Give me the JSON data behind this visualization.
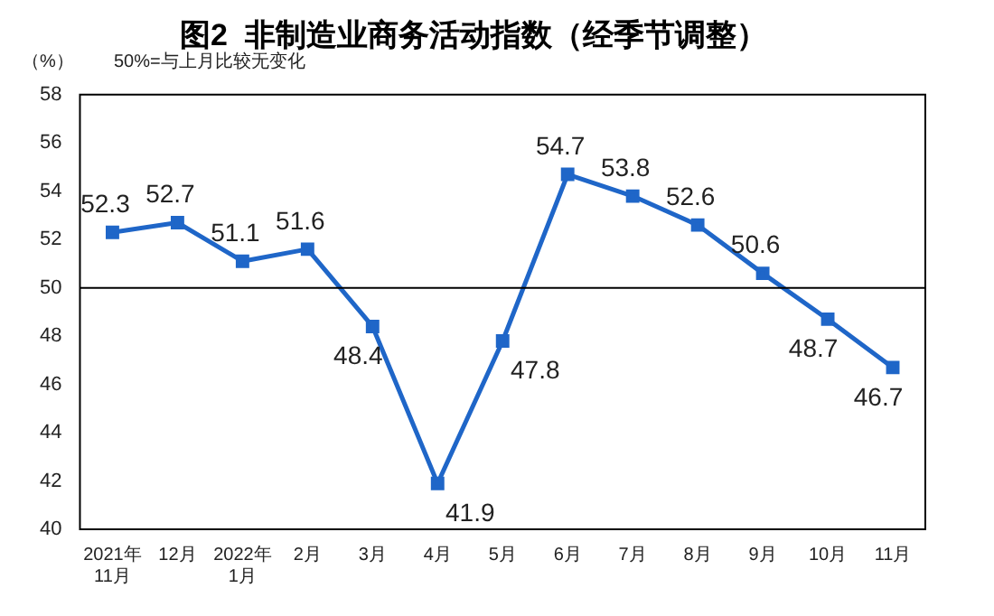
{
  "chart_data": {
    "type": "line",
    "title": "图2  非制造业商务活动指数（经季节调整）",
    "ylabel": "（%）",
    "annotations": [
      "50%=与上月比较无变化"
    ],
    "categories": [
      "2021年\n11月",
      "12月",
      "2022年\n1月",
      "2月",
      "3月",
      "4月",
      "5月",
      "6月",
      "7月",
      "8月",
      "9月",
      "10月",
      "11月"
    ],
    "series": [
      {
        "color": "#1f66c8",
        "values": [
          52.3,
          52.7,
          51.1,
          51.6,
          48.4,
          41.9,
          47.8,
          54.7,
          53.8,
          52.6,
          50.6,
          48.7,
          46.7
        ]
      }
    ],
    "ylim": [
      40,
      58
    ],
    "yticks": [
      40,
      42,
      44,
      46,
      48,
      50,
      52,
      54,
      56,
      58
    ],
    "grid": false,
    "legend": false,
    "marker": "square",
    "line_style": "solid",
    "data_labels": true,
    "ref_lines": [
      {
        "axis": "y",
        "value": 50,
        "color": "#000000"
      }
    ]
  }
}
